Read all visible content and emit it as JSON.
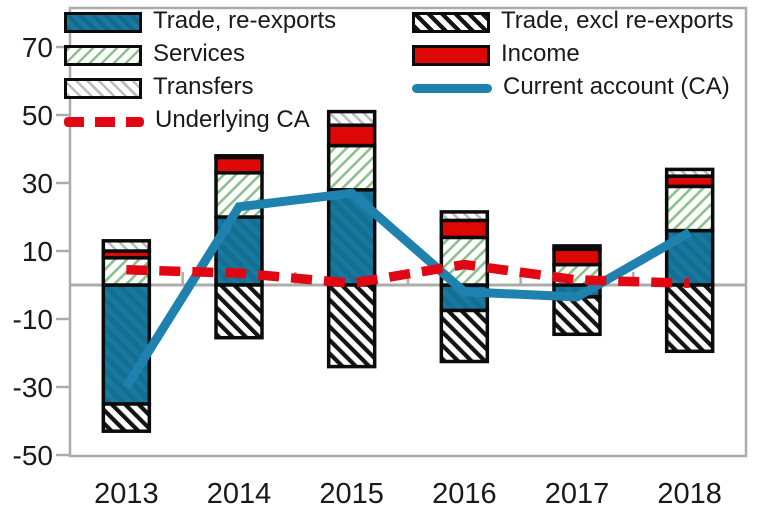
{
  "colors": {
    "bar_blue": "#17799F",
    "bar_blue_stripe": "#146E92",
    "line_blue": "#1F81AE",
    "income_red": "#DD0806",
    "underlying_red": "#E20613",
    "green_hatch": "#8CC08C",
    "gray_hatch": "#BDBDBD",
    "hatch_black": "#141414",
    "axis_gray": "#ACACAC",
    "text": "#1A1A1A"
  },
  "legend": {
    "left": [
      {
        "label": "Trade, re-exports",
        "swatch": "solid-blue"
      },
      {
        "label": "Services",
        "swatch": "green-hatch"
      },
      {
        "label": "Transfers",
        "swatch": "gray-hatch"
      },
      {
        "label": "Underlying CA",
        "swatch": "dashed-red-line"
      }
    ],
    "right": [
      {
        "label": "Trade, excl re-exports",
        "swatch": "black-hatch"
      },
      {
        "label": "Income",
        "swatch": "solid-red"
      },
      {
        "label": "Current account (CA)",
        "swatch": "blue-line"
      }
    ]
  },
  "chart_data": {
    "type": "bar",
    "subtype": "stacked-bars-with-lines",
    "title": "",
    "xlabel": "",
    "ylabel": "",
    "categories": [
      "2013",
      "2014",
      "2015",
      "2016",
      "2017",
      "2018"
    ],
    "series": [
      {
        "name": "Trade, re-exports",
        "kind": "bar",
        "style": "solid-blue",
        "values": [
          -35,
          20,
          28,
          -7.5,
          -3.5,
          16
        ]
      },
      {
        "name": "Trade, excl re-exports",
        "kind": "bar",
        "style": "black-hatch",
        "values": [
          -8,
          -15.5,
          -24,
          -15,
          -11,
          -19.5
        ]
      },
      {
        "name": "Services",
        "kind": "bar",
        "style": "green-hatch",
        "values": [
          8,
          13,
          13,
          14,
          6,
          13
        ]
      },
      {
        "name": "Income",
        "kind": "bar",
        "style": "solid-red",
        "values": [
          2,
          4.5,
          6,
          5,
          4.5,
          3
        ]
      },
      {
        "name": "Transfers",
        "kind": "bar",
        "style": "gray-hatch",
        "values": [
          3,
          0.5,
          4,
          2.5,
          1,
          2
        ]
      },
      {
        "name": "Current account (CA)",
        "kind": "line",
        "style": "blue-line",
        "values": [
          -30,
          23,
          27,
          -2,
          -3.5,
          15.5
        ]
      },
      {
        "name": "Underlying CA",
        "kind": "dashed-line",
        "style": "dashed-red-line",
        "values": [
          4.5,
          3.5,
          0.5,
          6,
          1.5,
          0.5
        ]
      }
    ],
    "yticks": [
      70,
      50,
      30,
      10,
      -10,
      -30,
      -50
    ],
    "ytick_labels": [
      "70",
      "50",
      "30",
      "10",
      "-10",
      "-30",
      "-50"
    ],
    "ylim": [
      -50.5,
      81.5
    ],
    "grid": "zero-line-only",
    "legend_position": "top-inside-two-columns"
  }
}
